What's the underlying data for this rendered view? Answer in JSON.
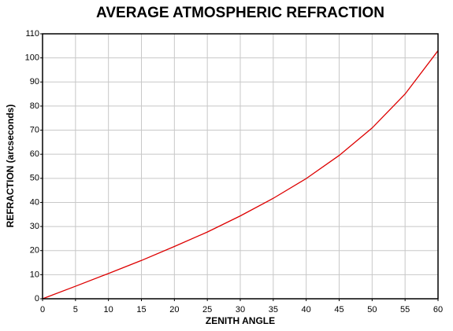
{
  "chart_data": {
    "type": "line",
    "title": "AVERAGE ATMOSPHERIC REFRACTION",
    "xlabel": "ZENITH ANGLE",
    "ylabel": "REFRACTION (arcseconds)",
    "x": [
      0,
      5,
      10,
      15,
      20,
      25,
      30,
      35,
      40,
      45,
      50,
      55,
      60
    ],
    "series": [
      {
        "name": "Refraction",
        "color": "#dd0000",
        "values": [
          0,
          5.2,
          10.5,
          15.9,
          21.7,
          27.7,
          34.4,
          41.7,
          49.9,
          59.5,
          70.9,
          85,
          103
        ]
      }
    ],
    "xlim": [
      0,
      60
    ],
    "xticks": [
      0,
      5,
      10,
      15,
      20,
      25,
      30,
      35,
      40,
      45,
      50,
      55,
      60
    ],
    "ylim": [
      0,
      110
    ],
    "yticks": [
      0,
      10,
      20,
      30,
      40,
      50,
      60,
      70,
      80,
      90,
      100,
      110
    ],
    "grid": true
  }
}
